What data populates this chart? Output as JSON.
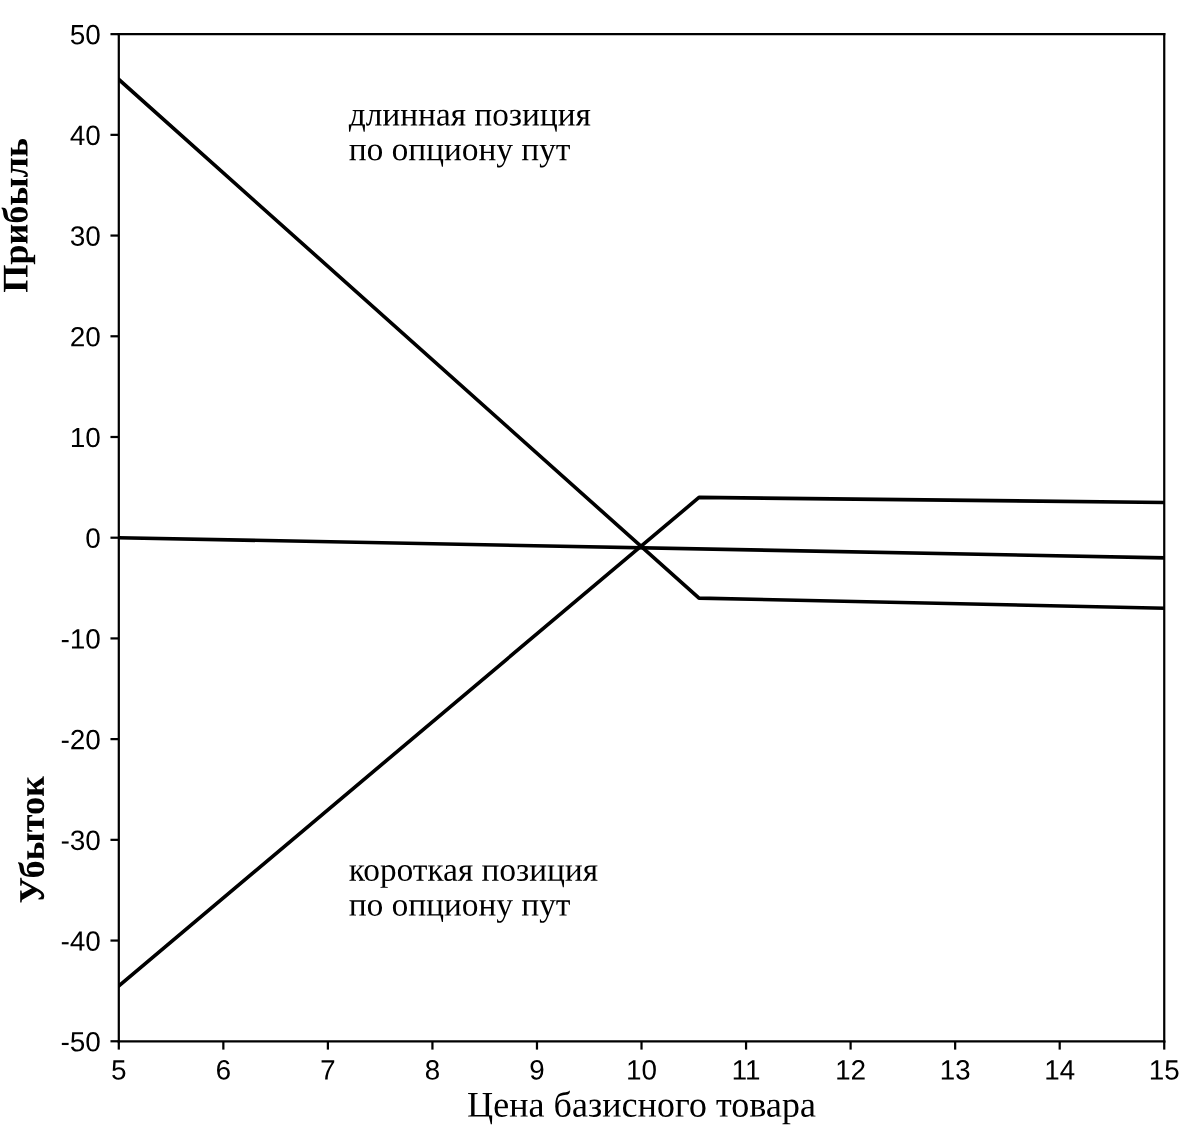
{
  "chart_data": {
    "type": "line",
    "xlabel": "Цена базисного товара",
    "ylabel": "Прибыль",
    "xlim": [
      5,
      15
    ],
    "ylim": [
      -50,
      50
    ],
    "xticks": [
      5,
      6,
      7,
      8,
      9,
      10,
      11,
      12,
      13,
      14,
      15
    ],
    "yticks": [
      -50,
      -40,
      -30,
      -20,
      -10,
      0,
      10,
      20,
      30,
      40,
      50
    ],
    "grid": false,
    "legend": false,
    "marker": "none",
    "line_style": "solid",
    "series": [
      {
        "color": "#000000",
        "x": [
          5,
          10.55,
          15
        ],
        "values": [
          45.5,
          -6,
          -7
        ]
      },
      {
        "color": "#000000",
        "x": [
          5,
          10.55,
          15
        ],
        "values": [
          -44.5,
          4,
          3.5
        ]
      },
      {
        "color": "#000000",
        "x": [
          5,
          15
        ],
        "values": [
          0,
          -2
        ]
      }
    ],
    "annotations": [
      "длинная позиция\nпо опциону пут",
      "короткая позиция\nпо опциону пут",
      "Убыток"
    ]
  }
}
